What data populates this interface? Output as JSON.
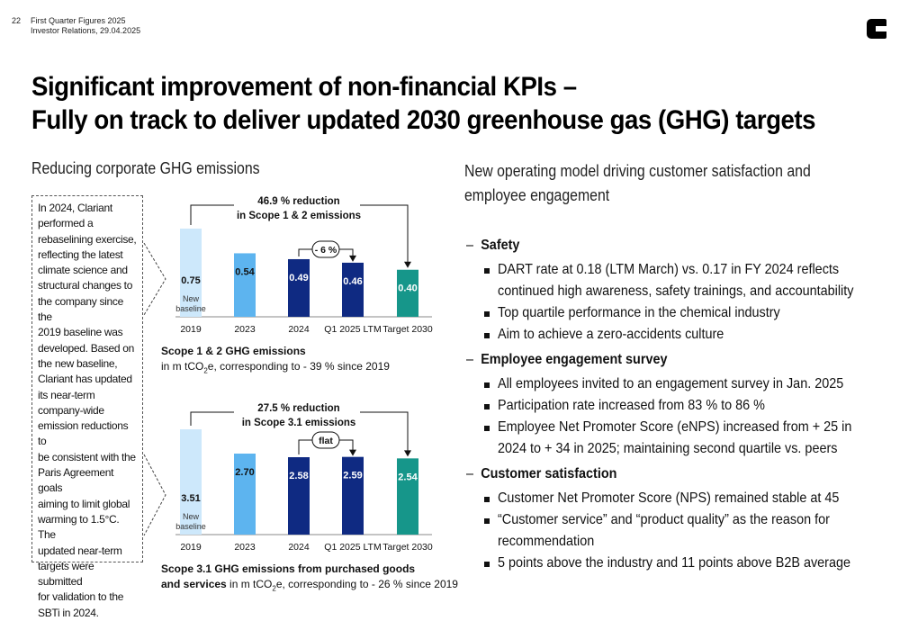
{
  "header": {
    "page_number": "22",
    "line1": "First Quarter Figures 2025",
    "line2": "Investor Relations, 29.04.2025",
    "logo": "clariant-logo"
  },
  "title": {
    "line1": "Significant improvement of non-financial KPIs –",
    "line2": "Fully on track to deliver updated 2030 greenhouse gas (GHG) targets"
  },
  "left": {
    "subtitle": "Reducing corporate GHG emissions",
    "info_lines": [
      "In 2024, Clariant",
      "performed a",
      "rebaselining exercise,",
      "reflecting the latest",
      "climate science and",
      "structural changes to",
      "the company since the",
      "2019 baseline was",
      "developed. Based on",
      "the new baseline,",
      "Clariant has updated",
      "its near-term",
      "company-wide",
      "emission reductions to",
      "be consistent with the",
      "Paris Agreement goals",
      "aiming to limit global",
      "warming to 1.5°C. The",
      "updated near-term",
      "targets were submitted",
      "for validation to the",
      "SBTi in 2024."
    ],
    "chart1_caption_bold": "Scope 1 & 2 GHG emissions",
    "chart1_caption_pre": "in m tCO",
    "chart1_caption_sub": "2",
    "chart1_caption_post": "e, corresponding to - 39 % since 2019",
    "chart2_caption_bold1": "Scope 3.1 GHG emissions from purchased goods",
    "chart2_caption_bold2": "and services",
    "chart2_caption_pre": " in m tCO",
    "chart2_caption_sub": "2",
    "chart2_caption_post": "e, corresponding to - 26 % since 2019"
  },
  "chart_data": [
    {
      "type": "bar",
      "categories": [
        "2019",
        "2023",
        "2024",
        "Q1 2025 LTM",
        "Target 2030"
      ],
      "values": [
        0.75,
        0.54,
        0.49,
        0.46,
        0.4
      ],
      "value_labels": [
        "0.75",
        "0.54",
        "0.49",
        "0.46",
        "0.40"
      ],
      "colors": [
        "#cde8fb",
        "#5db4ef",
        "#0f2a82",
        "#0f2a82",
        "#16968a"
      ],
      "label_colors": [
        "#111111",
        "#111111",
        "#ffffff",
        "#ffffff",
        "#ffffff"
      ],
      "baseline_note": "New baseline",
      "annotation_reduction": [
        "46.9 % reduction",
        "in Scope 1 & 2 emissions"
      ],
      "annotation_change": "- 6 %"
    },
    {
      "type": "bar",
      "categories": [
        "2019",
        "2023",
        "2024",
        "Q1 2025 LTM",
        "Target 2030"
      ],
      "values": [
        3.51,
        2.7,
        2.58,
        2.59,
        2.54
      ],
      "value_labels": [
        "3.51",
        "2.70",
        "2.58",
        "2.59",
        "2.54"
      ],
      "colors": [
        "#cde8fb",
        "#5db4ef",
        "#0f2a82",
        "#0f2a82",
        "#16968a"
      ],
      "label_colors": [
        "#111111",
        "#111111",
        "#ffffff",
        "#ffffff",
        "#ffffff"
      ],
      "baseline_note": "New baseline",
      "annotation_reduction": [
        "27.5 % reduction",
        "in Scope 3.1 emissions"
      ],
      "annotation_change": "flat"
    }
  ],
  "right": {
    "subtitle_line1": "New operating model driving customer satisfaction and",
    "subtitle_line2": "employee engagement",
    "sections": [
      {
        "title": "Safety",
        "bullets": [
          [
            "DART rate at 0.18 (LTM March) vs. 0.17 in FY 2024 reflects",
            "continued high awareness, safety trainings, and accountability"
          ],
          [
            "Top quartile performance in the chemical industry"
          ],
          [
            "Aim to achieve a zero-accidents culture"
          ]
        ]
      },
      {
        "title": "Employee engagement survey",
        "bullets": [
          [
            "All employees invited to an engagement survey in Jan. 2025"
          ],
          [
            "Participation rate increased from 83 % to 86 %"
          ],
          [
            "Employee Net Promoter Score (eNPS) increased from + 25 in",
            "2024 to + 34 in 2025; maintaining second quartile vs. peers"
          ]
        ]
      },
      {
        "title": "Customer satisfaction",
        "bullets": [
          [
            "Customer Net Promoter Score (NPS) remained stable at 45"
          ],
          [
            "“Customer service” and “product quality” as the reason for",
            "recommendation"
          ],
          [
            "5 points above the industry and 11 points above B2B average"
          ]
        ]
      }
    ]
  }
}
